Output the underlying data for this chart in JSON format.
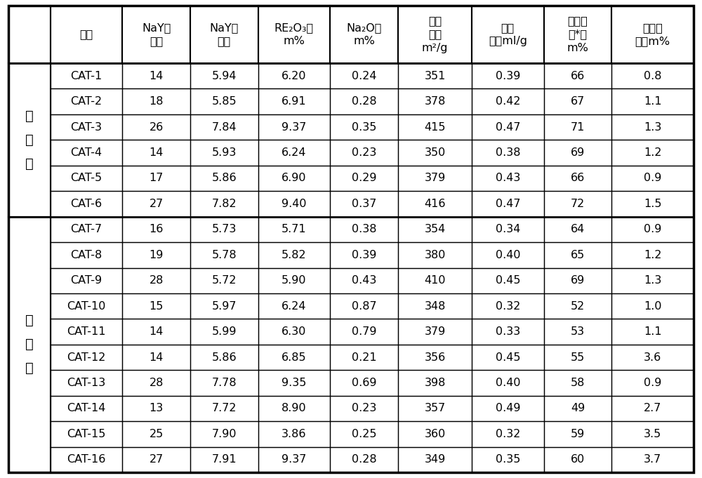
{
  "headers": [
    "项目",
    "NaY结\n晶度",
    "NaY硅\n铝比",
    "RE₂O₃，\nm%",
    "Na₂O，\nm%",
    "比表\n面，\nm²/g",
    "孔体\n积，ml/g",
    "微反活\n性*，\nm%",
    "磨损指\n数，m%"
  ],
  "group1_label": "实\n施\n例",
  "group2_label": "对\n比\n例",
  "rows_group1": [
    [
      "CAT-1",
      "14",
      "5.94",
      "6.20",
      "0.24",
      "351",
      "0.39",
      "66",
      "0.8"
    ],
    [
      "CAT-2",
      "18",
      "5.85",
      "6.91",
      "0.28",
      "378",
      "0.42",
      "67",
      "1.1"
    ],
    [
      "CAT-3",
      "26",
      "7.84",
      "9.37",
      "0.35",
      "415",
      "0.47",
      "71",
      "1.3"
    ],
    [
      "CAT-4",
      "14",
      "5.93",
      "6.24",
      "0.23",
      "350",
      "0.38",
      "69",
      "1.2"
    ],
    [
      "CAT-5",
      "17",
      "5.86",
      "6.90",
      "0.29",
      "379",
      "0.43",
      "66",
      "0.9"
    ],
    [
      "CAT-6",
      "27",
      "7.82",
      "9.40",
      "0.37",
      "416",
      "0.47",
      "72",
      "1.5"
    ]
  ],
  "rows_group2": [
    [
      "CAT-7",
      "16",
      "5.73",
      "5.71",
      "0.38",
      "354",
      "0.34",
      "64",
      "0.9"
    ],
    [
      "CAT-8",
      "19",
      "5.78",
      "5.82",
      "0.39",
      "380",
      "0.40",
      "65",
      "1.2"
    ],
    [
      "CAT-9",
      "28",
      "5.72",
      "5.90",
      "0.43",
      "410",
      "0.45",
      "69",
      "1.3"
    ],
    [
      "CAT-10",
      "15",
      "5.97",
      "6.24",
      "0.87",
      "348",
      "0.32",
      "52",
      "1.0"
    ],
    [
      "CAT-11",
      "14",
      "5.99",
      "6.30",
      "0.79",
      "379",
      "0.33",
      "53",
      "1.1"
    ],
    [
      "CAT-12",
      "14",
      "5.86",
      "6.85",
      "0.21",
      "356",
      "0.45",
      "55",
      "3.6"
    ],
    [
      "CAT-13",
      "28",
      "7.78",
      "9.35",
      "0.69",
      "398",
      "0.40",
      "58",
      "0.9"
    ],
    [
      "CAT-14",
      "13",
      "7.72",
      "8.90",
      "0.23",
      "357",
      "0.49",
      "49",
      "2.7"
    ],
    [
      "CAT-15",
      "25",
      "7.90",
      "3.86",
      "0.25",
      "360",
      "0.32",
      "59",
      "3.5"
    ],
    [
      "CAT-16",
      "27",
      "7.91",
      "9.37",
      "0.28",
      "349",
      "0.35",
      "60",
      "3.7"
    ]
  ],
  "bg_color": "#ffffff",
  "line_color": "#000000",
  "text_color": "#000000",
  "header_fontsize": 11.5,
  "cell_fontsize": 11.5,
  "group_label_fontsize": 14,
  "fig_width": 10.0,
  "fig_height": 6.81,
  "dpi": 100
}
